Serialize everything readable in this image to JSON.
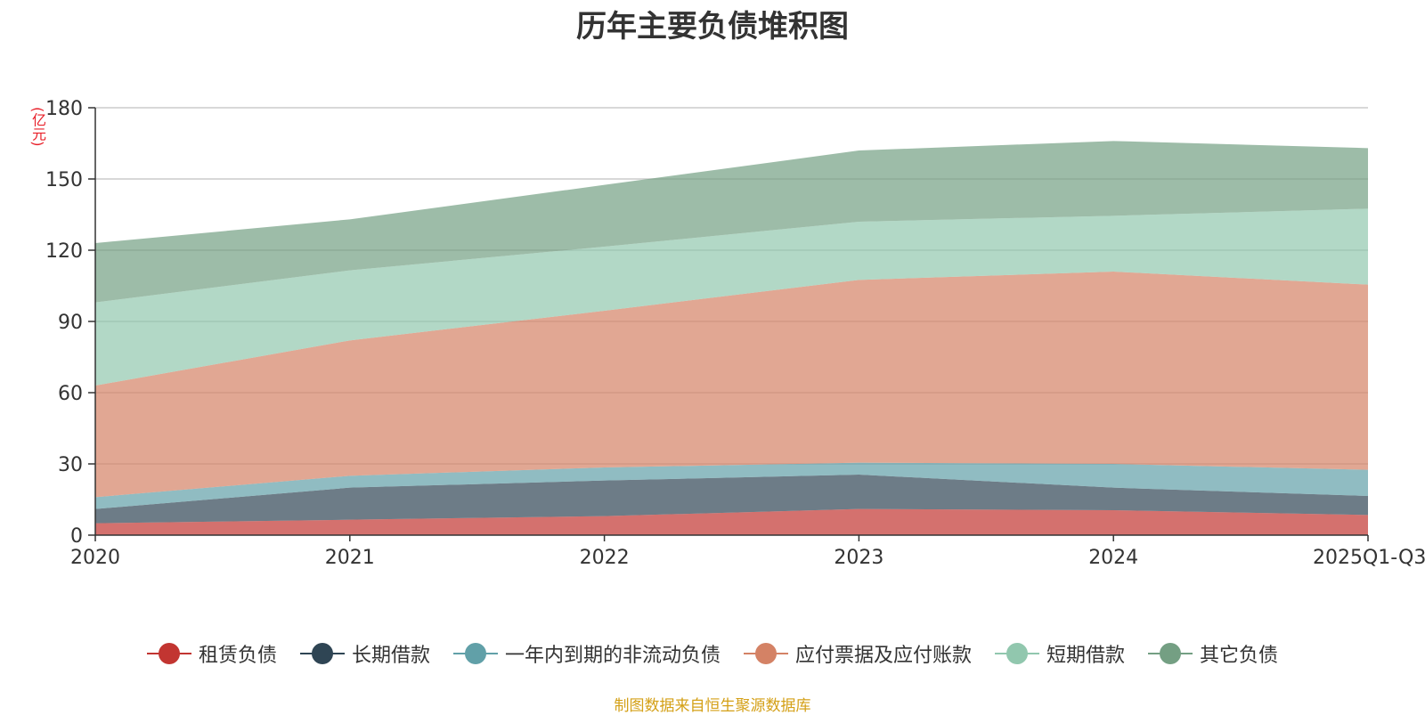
{
  "chart_data": {
    "type": "area",
    "title": "历年主要负债堆积图",
    "ylabel": "(亿元)",
    "categories": [
      "2020",
      "2021",
      "2022",
      "2023",
      "2024",
      "2025Q1-Q3"
    ],
    "ylim": [
      0,
      180
    ],
    "yticks": [
      0,
      30,
      60,
      90,
      120,
      150,
      180
    ],
    "stacked": true,
    "grid": true,
    "legend_position": "bottom",
    "series": [
      {
        "name": "租赁负债",
        "color": "#c23531",
        "values": [
          5,
          6.5,
          8,
          11,
          10.5,
          8.5
        ]
      },
      {
        "name": "长期借款",
        "color": "#2f4554",
        "values": [
          6,
          13.5,
          15,
          14.5,
          9.5,
          8
        ]
      },
      {
        "name": "一年内到期的非流动负债",
        "color": "#61a0a8",
        "values": [
          5,
          5,
          5.5,
          5,
          10,
          11
        ]
      },
      {
        "name": "应付票据及应付账款",
        "color": "#d48265",
        "values": [
          47,
          57,
          66,
          77,
          81,
          78
        ]
      },
      {
        "name": "短期借款",
        "color": "#91c7ae",
        "values": [
          35,
          29.5,
          27,
          24.5,
          23.5,
          32
        ]
      },
      {
        "name": "其它负债",
        "color": "#749f83",
        "values": [
          25,
          21.5,
          26,
          30,
          31.5,
          25.5
        ]
      }
    ]
  },
  "source": "制图数据来自恒生聚源数据库"
}
